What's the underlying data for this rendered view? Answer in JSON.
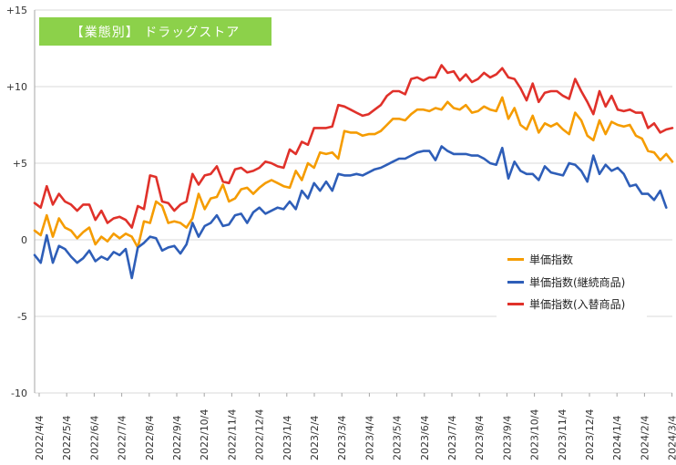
{
  "chart_data": {
    "type": "line",
    "title": "【業態別】 ドラッグストア",
    "ylim": [
      -10,
      15
    ],
    "yticks": [
      "+15",
      "+10",
      "+5",
      "0",
      "-5",
      "-10"
    ],
    "ytick_values": [
      15,
      10,
      5,
      0,
      -5,
      -10
    ],
    "xticks": [
      "2022/4/4",
      "2022/5/4",
      "2022/6/4",
      "2022/7/4",
      "2022/8/4",
      "2022/9/4",
      "2022/10/4",
      "2022/11/4",
      "2022/12/4",
      "2023/1/4",
      "2023/2/4",
      "2023/3/4",
      "2023/4/4",
      "2023/5/4",
      "2023/6/4",
      "2023/7/4",
      "2023/8/4",
      "2023/9/4",
      "2023/10/4",
      "2023/11/4",
      "2023/12/4",
      "2024/1/4",
      "2024/2/4",
      "2024/3/4"
    ],
    "grid": "horizontal",
    "legend_position": "right-middle",
    "series": [
      {
        "name": "単価指数",
        "color": "#f59c00",
        "values": [
          0.6,
          0.3,
          1.6,
          0.2,
          1.4,
          0.8,
          0.6,
          0.1,
          0.5,
          0.8,
          -0.3,
          0.2,
          -0.1,
          0.4,
          0.1,
          0.4,
          0.2,
          -0.5,
          1.2,
          1.1,
          2.5,
          2.2,
          1.1,
          1.2,
          1.1,
          0.8,
          1.4,
          3.0,
          2.0,
          2.7,
          2.8,
          3.6,
          2.5,
          2.7,
          3.3,
          3.4,
          3.0,
          3.4,
          3.7,
          3.9,
          3.7,
          3.5,
          3.4,
          4.5,
          3.9,
          5.0,
          4.7,
          5.7,
          5.6,
          5.7,
          5.3,
          7.1,
          7.0,
          7.0,
          6.8,
          6.9,
          6.9,
          7.1,
          7.5,
          7.9,
          7.9,
          7.8,
          8.2,
          8.5,
          8.5,
          8.4,
          8.6,
          8.5,
          9.0,
          8.6,
          8.5,
          8.8,
          8.3,
          8.4,
          8.7,
          8.5,
          8.4,
          9.3,
          7.9,
          8.6,
          7.5,
          7.2,
          8.1,
          7.0,
          7.6,
          7.4,
          7.6,
          7.2,
          6.9,
          8.3,
          7.8,
          6.8,
          6.5,
          7.8,
          6.9,
          7.7,
          7.5,
          7.4,
          7.5,
          6.8,
          6.6,
          5.8,
          5.7,
          5.2,
          5.6,
          5.1
        ]
      },
      {
        "name": "単価指数(継続商品)",
        "color": "#2e5eb8",
        "values": [
          -1.0,
          -1.5,
          0.3,
          -1.5,
          -0.4,
          -0.6,
          -1.1,
          -1.5,
          -1.2,
          -0.7,
          -1.4,
          -1.1,
          -1.3,
          -0.8,
          -1.0,
          -0.6,
          -2.5,
          -0.5,
          -0.2,
          0.2,
          0.1,
          -0.7,
          -0.5,
          -0.4,
          -0.9,
          -0.3,
          1.1,
          0.2,
          0.9,
          1.1,
          1.6,
          0.9,
          1.0,
          1.6,
          1.7,
          1.1,
          1.8,
          2.1,
          1.7,
          1.9,
          2.1,
          2.0,
          2.5,
          2.0,
          3.2,
          2.7,
          3.7,
          3.2,
          3.8,
          3.2,
          4.3,
          4.2,
          4.2,
          4.3,
          4.2,
          4.4,
          4.6,
          4.7,
          4.9,
          5.1,
          5.3,
          5.3,
          5.5,
          5.7,
          5.8,
          5.8,
          5.2,
          6.1,
          5.8,
          5.6,
          5.6,
          5.6,
          5.5,
          5.5,
          5.3,
          5.0,
          4.9,
          6.0,
          4.0,
          5.1,
          4.5,
          4.3,
          4.3,
          3.9,
          4.8,
          4.4,
          4.3,
          4.2,
          5.0,
          4.9,
          4.5,
          3.8,
          5.5,
          4.3,
          4.9,
          4.5,
          4.7,
          4.3,
          3.5,
          3.6,
          3.0,
          3.0,
          2.6,
          3.2,
          2.1
        ]
      },
      {
        "name": "単価指数(入替商品)",
        "color": "#e0312a",
        "values": [
          2.4,
          2.1,
          3.5,
          2.3,
          3.0,
          2.5,
          2.3,
          1.9,
          2.3,
          2.3,
          1.3,
          1.9,
          1.1,
          1.4,
          1.5,
          1.3,
          0.8,
          2.2,
          2.0,
          4.2,
          4.1,
          2.5,
          2.4,
          1.9,
          2.3,
          2.5,
          4.3,
          3.6,
          4.2,
          4.3,
          4.8,
          3.8,
          3.7,
          4.6,
          4.7,
          4.4,
          4.5,
          4.7,
          5.1,
          5.0,
          4.8,
          4.7,
          5.9,
          5.6,
          6.4,
          6.2,
          7.3,
          7.3,
          7.3,
          7.4,
          8.8,
          8.7,
          8.5,
          8.3,
          8.1,
          8.2,
          8.5,
          8.8,
          9.4,
          9.7,
          9.7,
          9.5,
          10.5,
          10.6,
          10.4,
          10.6,
          10.6,
          11.4,
          10.9,
          11.0,
          10.4,
          10.8,
          10.3,
          10.5,
          10.9,
          10.6,
          10.8,
          11.2,
          10.6,
          10.5,
          9.9,
          9.1,
          10.2,
          9.0,
          9.6,
          9.7,
          9.7,
          9.4,
          9.2,
          10.5,
          9.7,
          9.0,
          8.2,
          9.7,
          8.7,
          9.4,
          8.5,
          8.4,
          8.5,
          8.3,
          8.3,
          7.3,
          7.6,
          7.0,
          7.2,
          7.3
        ]
      }
    ]
  }
}
